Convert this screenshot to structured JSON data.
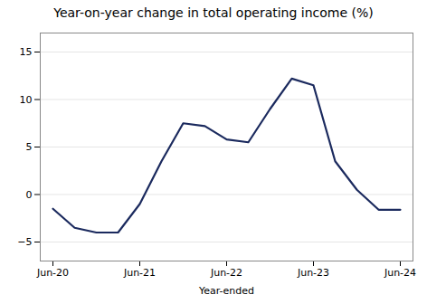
{
  "chart_data": {
    "type": "line",
    "title": "Year-on-year change in total operating income (%)",
    "xlabel": "Year-ended",
    "categories": [
      "Jun-20",
      null,
      null,
      null,
      "Jun-21",
      null,
      null,
      null,
      "Jun-22",
      null,
      null,
      null,
      "Jun-23",
      null,
      null,
      null,
      "Jun-24"
    ],
    "values": [
      -1.5,
      -3.5,
      -4.0,
      -4.0,
      -1.0,
      3.5,
      7.5,
      7.2,
      5.8,
      5.5,
      9.0,
      12.2,
      11.5,
      3.5,
      0.5,
      -1.6,
      -1.6
    ],
    "color": "#1b2a5e",
    "ylim": [
      -7,
      17
    ],
    "yticks": [
      -5,
      0,
      5,
      10,
      15
    ],
    "grid": true
  }
}
